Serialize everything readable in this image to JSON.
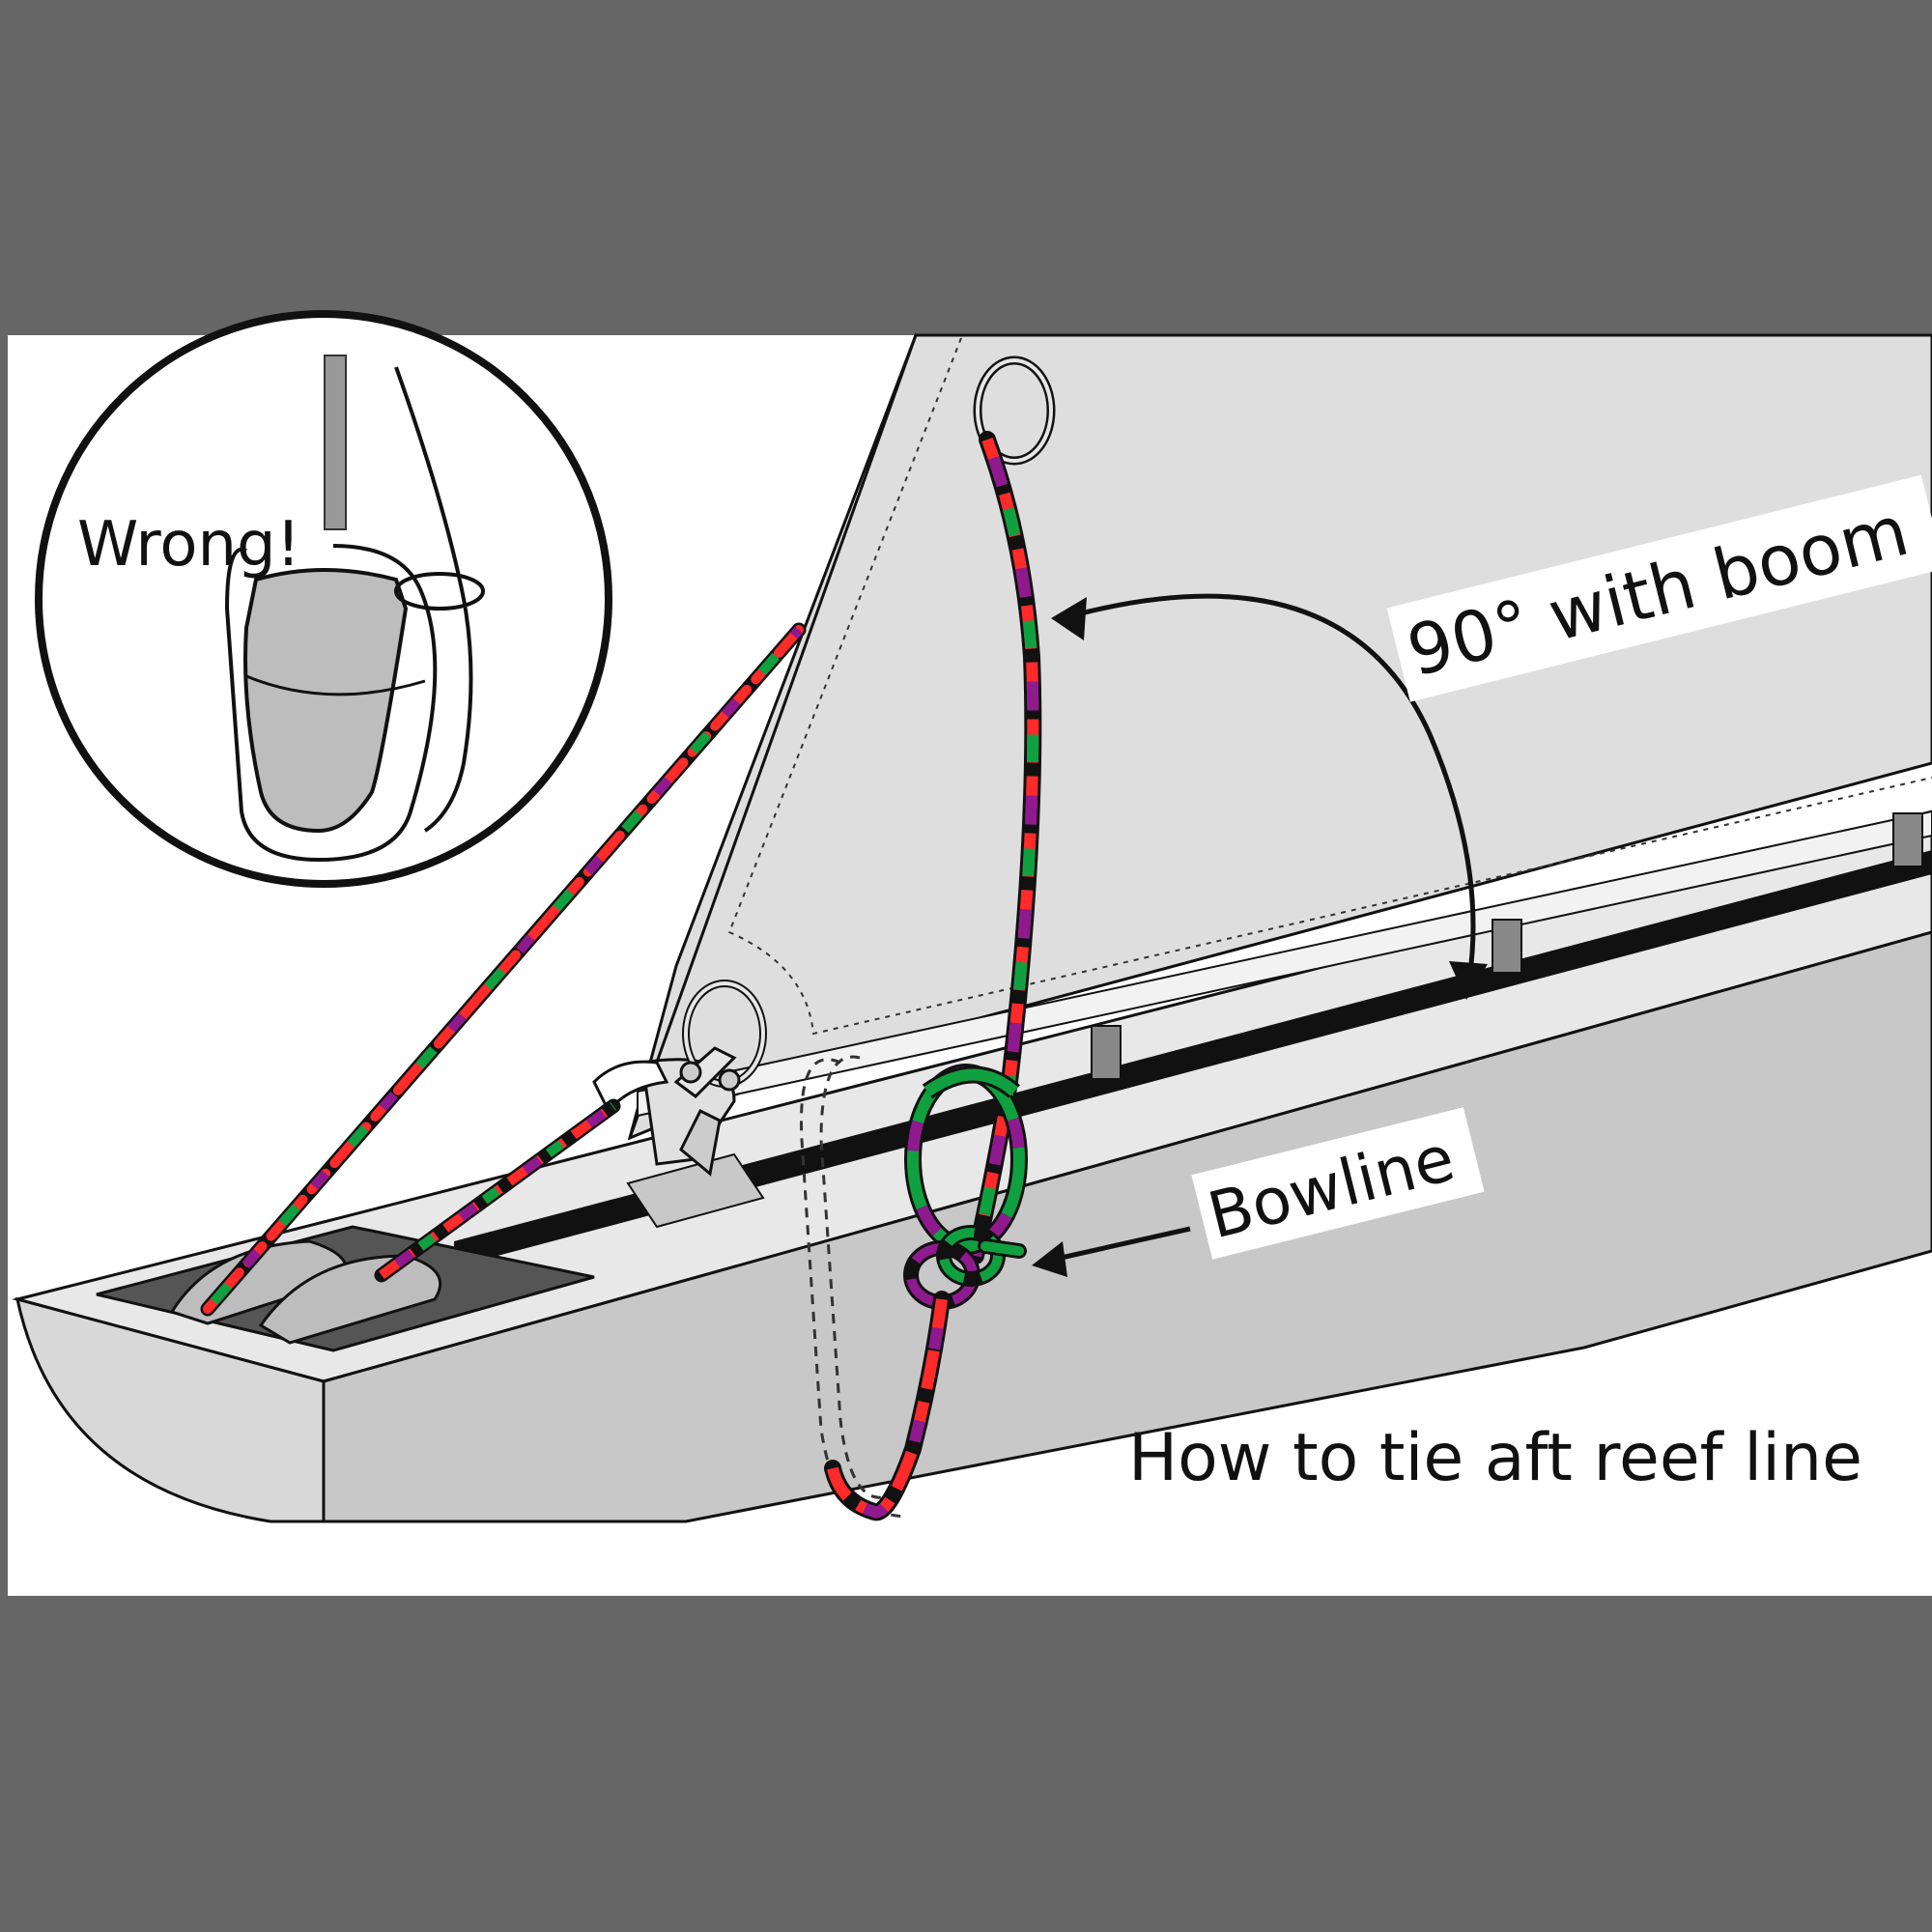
{
  "colors": {
    "frame": "#666666",
    "panel": "#ffffff",
    "sail": "#dedede",
    "boom_top": "#e6e6e6",
    "boom_side": "#c6c6c6",
    "boom_end": "#d9d9d9",
    "slot": "#111111",
    "rope_red": "#ff2a2a",
    "rope_purple": "#8e1a8e",
    "rope_green": "#10a040",
    "rope_gray": "#6a6a6a",
    "outline": "#111111"
  },
  "labels": {
    "wrong": "Wrong!",
    "angle": "90° with boom",
    "bowline": "Bowline",
    "caption": "How to tie aft reef line"
  },
  "icons": {
    "inset": "magnified-wrong-example-icon",
    "ring_upper": "reef-ring-upper-icon",
    "ring_lower": "clew-ring-lower-icon",
    "shackle": "shackle-icon",
    "sheaves": "boom-end-sheaves-icon"
  }
}
